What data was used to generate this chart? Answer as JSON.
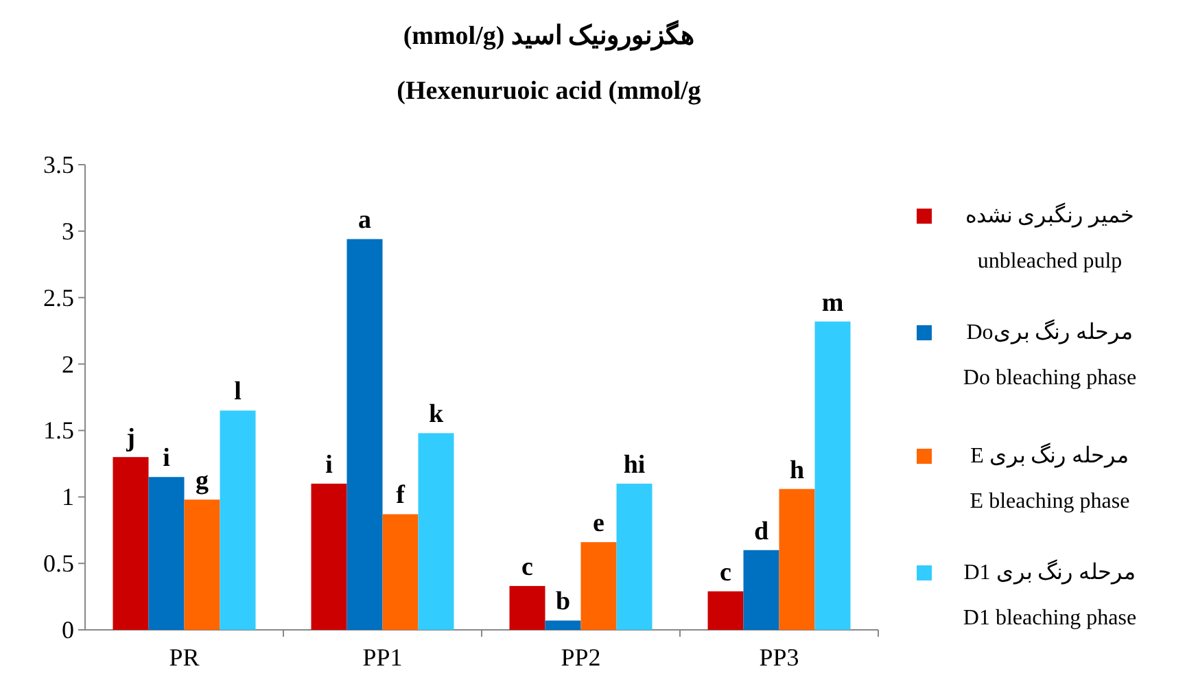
{
  "chart_data": {
    "type": "bar",
    "title": "هگزنورونیک اسید (mmol/g)",
    "subtitle": "(Hexenuruoic acid (mmol/g",
    "categories": [
      "PR",
      "PP1",
      "PP2",
      "PP3"
    ],
    "series": [
      {
        "name": "خمیر رنگبری نشده\nunbleached pulp",
        "color": "#cc0000",
        "values": [
          1.3,
          1.1,
          0.33,
          0.29
        ],
        "value_labels": [
          "j",
          "i",
          "c",
          "c"
        ]
      },
      {
        "name": "مرحله رنگ بریDo\nDo bleaching phase",
        "color": "#0070c0",
        "values": [
          1.15,
          2.94,
          0.07,
          0.6
        ],
        "value_labels": [
          "i",
          "a",
          "b",
          "d"
        ]
      },
      {
        "name": "مرحله رنگ بری E\nE bleaching phase",
        "color": "#ff6600",
        "values": [
          0.98,
          0.87,
          0.66,
          1.06
        ],
        "value_labels": [
          "g",
          "f",
          "e",
          "h"
        ]
      },
      {
        "name": "مرحله رنگ بری D1\nD1 bleaching phase",
        "color": "#33ccff",
        "values": [
          1.65,
          1.48,
          1.1,
          2.32
        ],
        "value_labels": [
          "l",
          "k",
          "hi",
          "m"
        ]
      }
    ],
    "ylim": [
      0,
      3.5
    ],
    "yticks": [
      0,
      0.5,
      1,
      1.5,
      2,
      2.5,
      3,
      3.5
    ],
    "grid": false,
    "legend": "right"
  }
}
